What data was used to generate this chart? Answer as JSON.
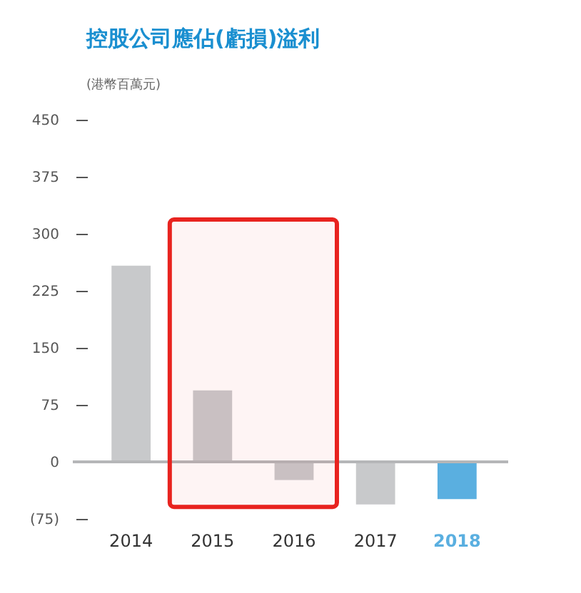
{
  "chart_data": {
    "type": "bar",
    "title": "控股公司應佔(虧損)溢利",
    "ylabel": "(港幣百萬元)",
    "categories": [
      "2014",
      "2015",
      "2016",
      "2017",
      "2018"
    ],
    "values": [
      258,
      94,
      -24,
      -56,
      -49
    ],
    "colors": [
      "#c8c9cb",
      "#c8c9cb",
      "#c8c9cb",
      "#c8c9cb",
      "#5aafe0"
    ],
    "ylim": [
      -75,
      450
    ],
    "yticks": [
      {
        "value": -75,
        "label": "(75)"
      },
      0,
      75,
      150,
      225,
      300,
      375,
      450
    ],
    "ref_lines": [
      {
        "axis": "y",
        "value": 0,
        "color": "#b5b6b8"
      }
    ],
    "bands": [
      {
        "axis": "x",
        "from": "2015",
        "to": "2016",
        "color": "#e8231f"
      }
    ],
    "grid": false
  }
}
